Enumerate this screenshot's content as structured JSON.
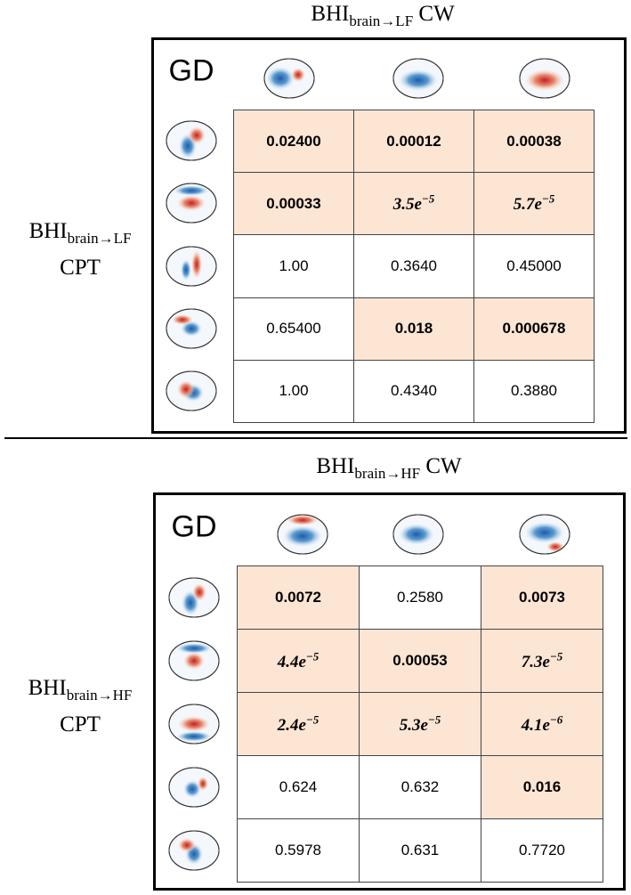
{
  "panels": [
    {
      "title": {
        "base": "BHI",
        "sub": "brain→LF",
        "suffix": "CW"
      },
      "side_label": {
        "base": "BHI",
        "sub": "brain→LF",
        "line2": "CPT"
      },
      "corner_label": "GD",
      "rows": [
        [
          {
            "text": "0.02400",
            "significant": true
          },
          {
            "text": "0.00012",
            "significant": true
          },
          {
            "text": "0.00038",
            "significant": true
          }
        ],
        [
          {
            "text": "0.00033",
            "significant": true
          },
          {
            "base": "3.5e",
            "exp": "−5",
            "significant": true
          },
          {
            "base": "5.7e",
            "exp": "−5",
            "significant": true
          }
        ],
        [
          {
            "text": "1.00",
            "significant": false
          },
          {
            "text": "0.3640",
            "significant": false
          },
          {
            "text": "0.45000",
            "significant": false
          }
        ],
        [
          {
            "text": "0.65400",
            "significant": false
          },
          {
            "text": "0.018",
            "significant": true
          },
          {
            "text": "0.000678",
            "significant": true
          }
        ],
        [
          {
            "text": "1.00",
            "significant": false
          },
          {
            "text": "0.4340",
            "significant": false
          },
          {
            "text": "0.3880",
            "significant": false
          }
        ]
      ]
    },
    {
      "title": {
        "base": "BHI",
        "sub": "brain→HF",
        "suffix": "CW"
      },
      "side_label": {
        "base": "BHI",
        "sub": "brain→HF",
        "line2": "CPT"
      },
      "corner_label": "GD",
      "rows": [
        [
          {
            "text": "0.0072",
            "significant": true
          },
          {
            "text": "0.2580",
            "significant": false
          },
          {
            "text": "0.0073",
            "significant": true
          }
        ],
        [
          {
            "base": "4.4e",
            "exp": "−5",
            "significant": true
          },
          {
            "text": "0.00053",
            "significant": true
          },
          {
            "base": "7.3e",
            "exp": "−5",
            "significant": true
          }
        ],
        [
          {
            "base": "2.4e",
            "exp": "−5",
            "significant": true
          },
          {
            "base": "5.3e",
            "exp": "−5",
            "significant": true
          },
          {
            "base": "4.1e",
            "exp": "−6",
            "significant": true
          }
        ],
        [
          {
            "text": "0.624",
            "significant": false
          },
          {
            "text": "0.632",
            "significant": false
          },
          {
            "text": "0.016",
            "significant": true
          }
        ],
        [
          {
            "text": "0.5978",
            "significant": false
          },
          {
            "text": "0.631",
            "significant": false
          },
          {
            "text": "0.7720",
            "significant": false
          }
        ]
      ]
    }
  ]
}
